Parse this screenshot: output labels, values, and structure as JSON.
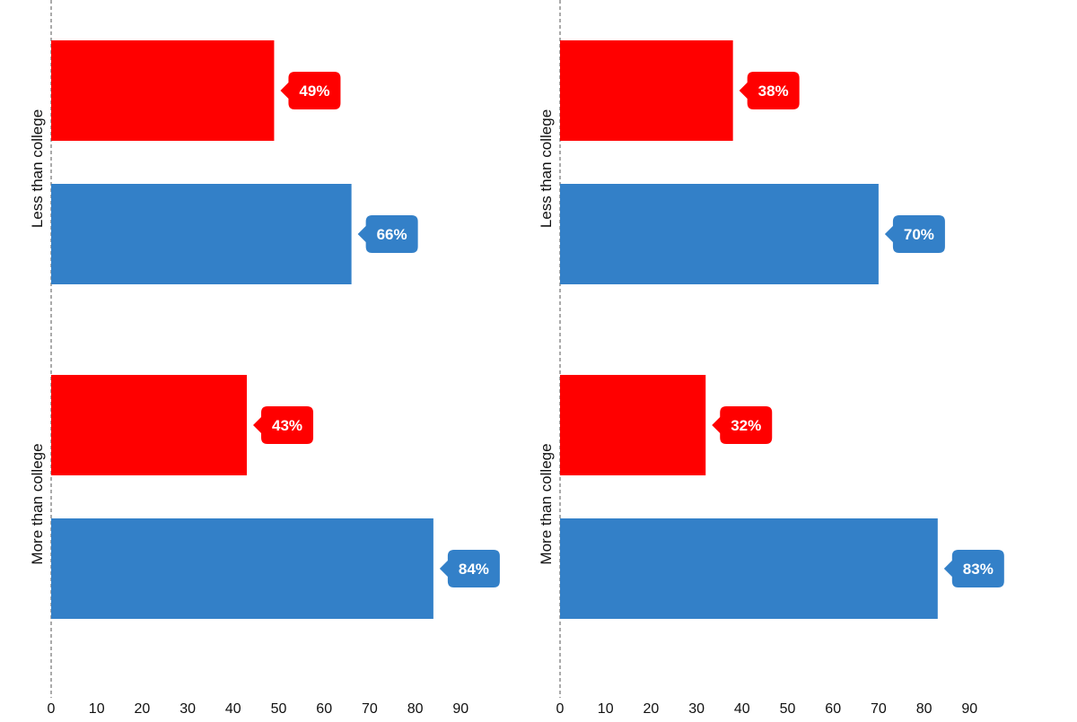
{
  "colors": {
    "red": "#ff0000",
    "blue": "#3380c8",
    "axis": "#555555",
    "text": "#111111"
  },
  "chart_data": [
    {
      "type": "bar",
      "orientation": "horizontal",
      "title": "",
      "xlabel": "",
      "ylabel": "",
      "xlim": [
        0,
        90
      ],
      "x_ticks": [
        "0",
        "10",
        "20",
        "30",
        "40",
        "50",
        "60",
        "70",
        "80",
        "90"
      ],
      "grid": false,
      "categories": [
        "Less than college",
        "More than college"
      ],
      "series": [
        {
          "color": "red",
          "values": [
            49,
            43
          ],
          "labels": [
            "49%",
            "43%"
          ]
        },
        {
          "color": "blue",
          "values": [
            66,
            84
          ],
          "labels": [
            "66%",
            "84%"
          ]
        }
      ]
    },
    {
      "type": "bar",
      "orientation": "horizontal",
      "title": "",
      "xlabel": "",
      "ylabel": "",
      "xlim": [
        0,
        90
      ],
      "x_ticks": [
        "0",
        "10",
        "20",
        "30",
        "40",
        "50",
        "60",
        "70",
        "80",
        "90"
      ],
      "grid": false,
      "categories": [
        "Less than college",
        "More than college"
      ],
      "series": [
        {
          "color": "red",
          "values": [
            38,
            32
          ],
          "labels": [
            "38%",
            "32%"
          ]
        },
        {
          "color": "blue",
          "values": [
            70,
            83
          ],
          "labels": [
            "70%",
            "83%"
          ]
        }
      ]
    }
  ]
}
